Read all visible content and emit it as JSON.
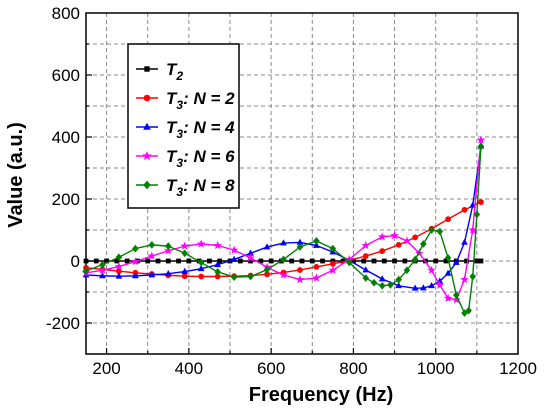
{
  "chart_data": {
    "type": "line",
    "xlabel": "Frequency (Hz)",
    "ylabel": "Value (a.u.)",
    "xlim": [
      150,
      1200
    ],
    "ylim": [
      -300,
      800
    ],
    "xticks": [
      "200",
      "400",
      "600",
      "800",
      "1000",
      "1200"
    ],
    "yticks": [
      "-200",
      "0",
      "200",
      "400",
      "600",
      "800"
    ],
    "grid": true,
    "legend_position": "top-left",
    "series": [
      {
        "name": "T2",
        "label_main": "T",
        "label_sub": "2",
        "label_suffix": "",
        "color": "#000000",
        "marker": "square",
        "x": [
          150,
          175,
          200,
          225,
          250,
          275,
          300,
          325,
          350,
          375,
          400,
          425,
          450,
          475,
          500,
          525,
          550,
          575,
          600,
          625,
          650,
          675,
          700,
          725,
          750,
          775,
          800,
          825,
          850,
          875,
          900,
          925,
          950,
          975,
          1000,
          1025,
          1050,
          1075,
          1100,
          1110
        ],
        "y": [
          0,
          0,
          0,
          0,
          0,
          0,
          0,
          0,
          0,
          0,
          0,
          0,
          0,
          0,
          0,
          0,
          0,
          0,
          0,
          0,
          0,
          0,
          0,
          0,
          0,
          0,
          0,
          0,
          0,
          0,
          0,
          0,
          0,
          0,
          0,
          0,
          0,
          0,
          0,
          0
        ]
      },
      {
        "name": "T3: N = 2",
        "label_main": "T",
        "label_sub": "3",
        "label_suffix": ": N = 2",
        "color": "#ff0000",
        "marker": "circle",
        "x": [
          150,
          190,
          230,
          270,
          310,
          350,
          390,
          430,
          470,
          510,
          550,
          590,
          630,
          670,
          710,
          750,
          790,
          830,
          870,
          910,
          950,
          990,
          1030,
          1070,
          1110
        ],
        "y": [
          -22,
          -27,
          -33,
          -38,
          -42,
          -46,
          -49,
          -50,
          -50,
          -49,
          -47,
          -43,
          -37,
          -29,
          -19,
          -9,
          2,
          16,
          32,
          52,
          76,
          104,
          135,
          165,
          190
        ]
      },
      {
        "name": "T3: N = 4",
        "label_main": "T",
        "label_sub": "3",
        "label_suffix": ": N = 4",
        "color": "#0000ff",
        "marker": "triangle",
        "x": [
          150,
          190,
          230,
          270,
          310,
          350,
          390,
          430,
          470,
          510,
          550,
          590,
          630,
          670,
          710,
          750,
          790,
          830,
          870,
          910,
          950,
          970,
          990,
          1010,
          1030,
          1050,
          1070,
          1090,
          1110
        ],
        "y": [
          -45,
          -48,
          -49,
          -48,
          -45,
          -41,
          -34,
          -25,
          -12,
          5,
          25,
          45,
          58,
          60,
          50,
          29,
          2,
          -29,
          -58,
          -80,
          -88,
          -87,
          -80,
          -65,
          -40,
          -5,
          60,
          180,
          370
        ]
      },
      {
        "name": "T3: N = 6",
        "label_main": "T",
        "label_sub": "3",
        "label_suffix": ": N = 6",
        "color": "#ff00ff",
        "marker": "star",
        "x": [
          150,
          190,
          230,
          270,
          310,
          350,
          390,
          430,
          470,
          510,
          550,
          590,
          630,
          670,
          710,
          750,
          790,
          830,
          870,
          900,
          930,
          960,
          990,
          1010,
          1030,
          1050,
          1070,
          1090,
          1110
        ],
        "y": [
          -38,
          -30,
          -18,
          -2,
          16,
          33,
          48,
          55,
          50,
          35,
          10,
          -20,
          -45,
          -60,
          -55,
          -30,
          5,
          50,
          78,
          82,
          65,
          25,
          -30,
          -78,
          -120,
          -125,
          -60,
          100,
          390
        ]
      },
      {
        "name": "T3: N = 8",
        "label_main": "T",
        "label_sub": "3",
        "label_suffix": ": N = 8",
        "color": "#008000",
        "marker": "diamond",
        "x": [
          150,
          190,
          230,
          270,
          310,
          350,
          390,
          430,
          470,
          510,
          550,
          590,
          630,
          670,
          710,
          750,
          790,
          830,
          850,
          870,
          890,
          910,
          930,
          950,
          970,
          990,
          1010,
          1030,
          1050,
          1070,
          1080,
          1090,
          1100,
          1110
        ],
        "y": [
          -32,
          -12,
          12,
          40,
          52,
          48,
          25,
          -5,
          -35,
          -52,
          -50,
          -28,
          5,
          45,
          65,
          40,
          -5,
          -55,
          -70,
          -80,
          -77,
          -60,
          -30,
          5,
          55,
          100,
          95,
          10,
          -110,
          -168,
          -160,
          -50,
          150,
          370
        ]
      }
    ]
  }
}
